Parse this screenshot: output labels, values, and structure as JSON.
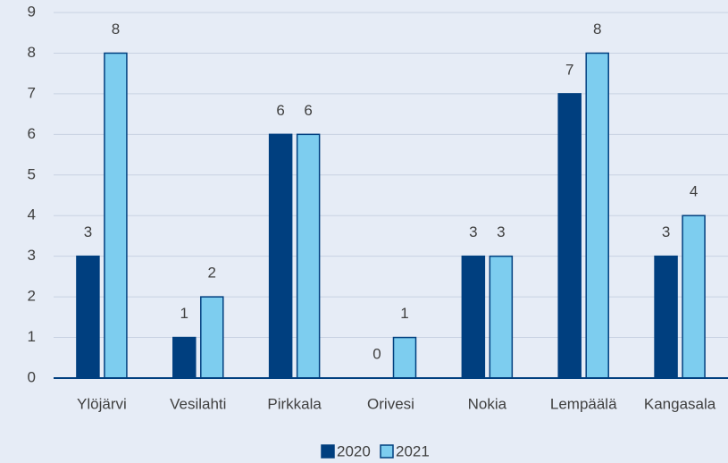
{
  "chart_data": {
    "type": "bar",
    "categories": [
      "Ylöjärvi",
      "Vesilahti",
      "Pirkkala",
      "Orivesi",
      "Nokia",
      "Lempäälä",
      "Kangasala"
    ],
    "series": [
      {
        "name": "2020",
        "color": "#003f7f",
        "values": [
          3,
          1,
          6,
          0,
          3,
          7,
          3
        ]
      },
      {
        "name": "2021",
        "color": "#7dcdef",
        "values": [
          8,
          2,
          6,
          1,
          3,
          8,
          4
        ]
      }
    ],
    "ylim": [
      0,
      9
    ],
    "yticks": [
      0,
      1,
      2,
      3,
      4,
      5,
      6,
      7,
      8,
      9
    ],
    "grid": true,
    "legend": "bottom"
  }
}
